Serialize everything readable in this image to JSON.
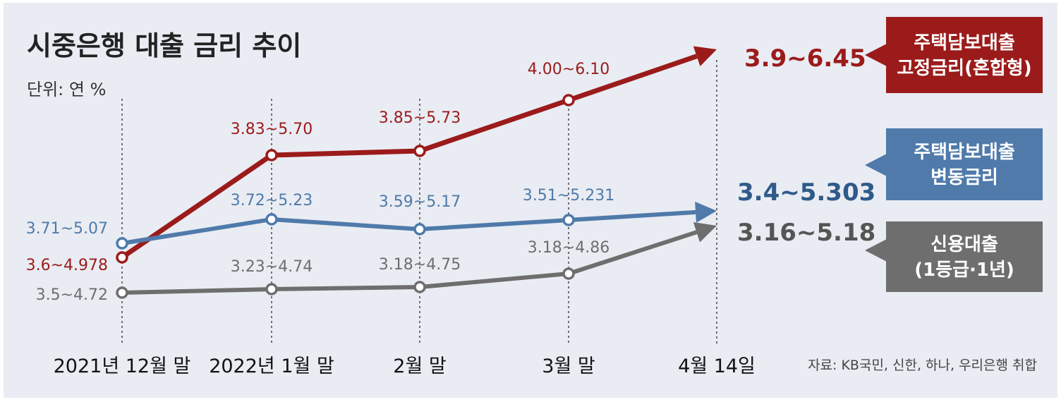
{
  "chart_data": {
    "type": "line",
    "title": "시중은행 대출 금리 추이",
    "unit": "단위: 연 %",
    "source": "자료: KB국민, 신한, 하나, 우리은행 취합",
    "categories": [
      "2021년 12월 말",
      "2022년 1월 말",
      "2월 말",
      "3월 말",
      "4월 14일"
    ],
    "series": [
      {
        "name": "주택담보대출 고정금리(혼합형)",
        "badge_lines": [
          "주택담보대출",
          "고정금리(혼합형)"
        ],
        "color": "#9b1b1b",
        "lower": [
          3.6,
          3.83,
          3.85,
          4.0,
          3.9
        ],
        "upper": [
          4.978,
          5.7,
          5.73,
          6.1,
          6.45
        ],
        "labels": [
          "3.6~4.978",
          "3.83~5.70",
          "3.85~5.73",
          "4.00~6.10",
          "3.9~6.45"
        ]
      },
      {
        "name": "주택담보대출 변동금리",
        "badge_lines": [
          "주택담보대출",
          "변동금리"
        ],
        "color": "#4f7aaa",
        "lower": [
          3.71,
          3.72,
          3.59,
          3.51,
          3.4
        ],
        "upper": [
          5.07,
          5.23,
          5.17,
          5.231,
          5.303
        ],
        "labels": [
          "3.71~5.07",
          "3.72~5.23",
          "3.59~5.17",
          "3.51~5.231",
          "3.4~5.303"
        ]
      },
      {
        "name": "신용대출 (1등급·1년)",
        "badge_lines": [
          "신용대출",
          "(1등급·1년)"
        ],
        "color": "#6e6e6e",
        "lower": [
          3.5,
          3.23,
          3.18,
          3.18,
          3.16
        ],
        "upper": [
          4.72,
          4.74,
          4.75,
          4.86,
          5.18
        ],
        "labels": [
          "3.5~4.72",
          "3.23~4.74",
          "3.18~4.75",
          "3.18~4.86",
          "3.16~5.18"
        ]
      }
    ]
  }
}
